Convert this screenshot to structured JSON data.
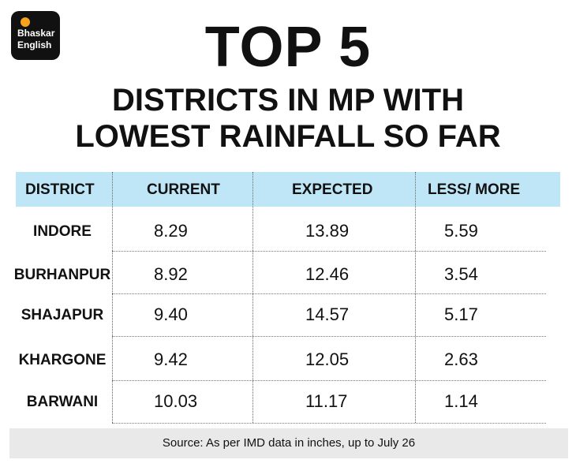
{
  "brand": {
    "line1": "Bhaskar",
    "line2": "English"
  },
  "header": {
    "title": "TOP 5",
    "subtitle_line1": "DISTRICTS IN MP WITH",
    "subtitle_line2": "LOWEST RAINFALL SO FAR"
  },
  "colors": {
    "header_band": "#bfe6f7",
    "source_band": "#e9e9e9",
    "logo_bg": "#111111",
    "logo_dot": "#f7a21b"
  },
  "chart_data": {
    "type": "table",
    "columns": [
      "DISTRICT",
      "CURRENT",
      "EXPECTED",
      "LESS/ MORE"
    ],
    "rows": [
      [
        "INDORE",
        "8.29",
        "13.89",
        "5.59"
      ],
      [
        "BURHANPUR",
        "8.92",
        "12.46",
        "3.54"
      ],
      [
        "SHAJAPUR",
        "9.40",
        "14.57",
        "5.17"
      ],
      [
        "KHARGONE",
        "9.42",
        "12.05",
        "2.63"
      ],
      [
        "BARWANI",
        "10.03",
        "11.17",
        "1.14"
      ]
    ]
  },
  "source": {
    "text": "Source:  As per IMD data in inches, up to July 26"
  }
}
